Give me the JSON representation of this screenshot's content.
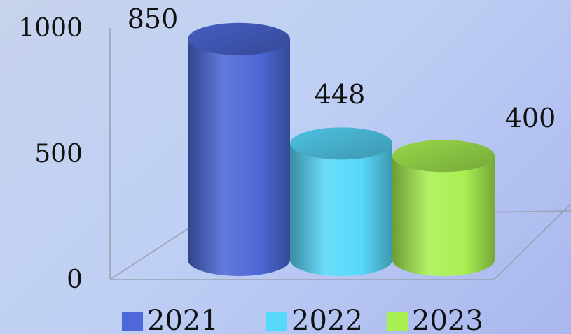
{
  "chart_data": {
    "type": "bar",
    "variant": "3d-cylinder",
    "categories": [
      "2021",
      "2022",
      "2023"
    ],
    "values": [
      850,
      448,
      400
    ],
    "colors": [
      "#4d68d8",
      "#57d8fb",
      "#a8f052"
    ],
    "ylim": [
      0,
      1000
    ],
    "yticks": [
      0,
      500,
      1000
    ],
    "legend": {
      "placement": "bottom",
      "entries": [
        "2021",
        "2022",
        "2023"
      ]
    },
    "grid": false,
    "title": "",
    "xlabel": "",
    "ylabel": ""
  }
}
